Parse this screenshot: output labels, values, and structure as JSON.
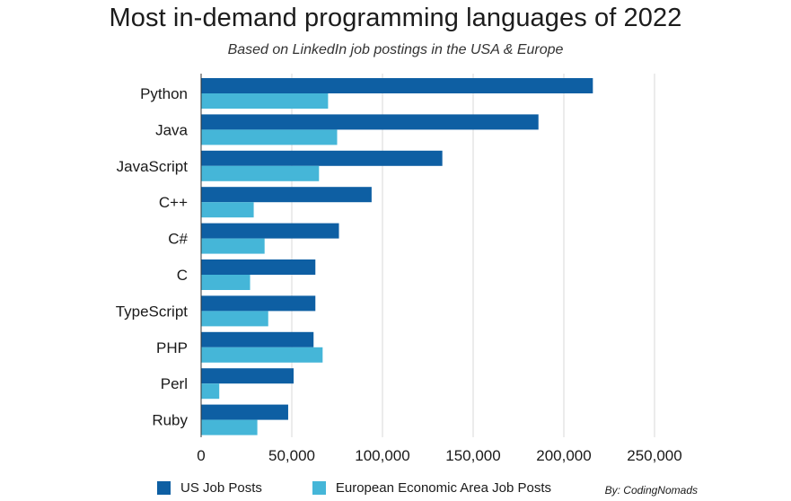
{
  "chart_data": {
    "type": "bar",
    "orientation": "horizontal",
    "title": "Most in-demand programming languages of 2022",
    "subtitle": "Based on LinkedIn job postings in the USA & Europe",
    "categories": [
      "Python",
      "Java",
      "JavaScript",
      "C++",
      "C#",
      "C",
      "TypeScript",
      "PHP",
      "Perl",
      "Ruby"
    ],
    "series": [
      {
        "name": "US Job Posts",
        "color": "#0e5fa3",
        "values": [
          216000,
          186000,
          133000,
          94000,
          76000,
          63000,
          63000,
          62000,
          51000,
          48000
        ]
      },
      {
        "name": "European Economic Area Job Posts",
        "color": "#45b6d8",
        "values": [
          70000,
          75000,
          65000,
          29000,
          35000,
          27000,
          37000,
          67000,
          10000,
          31000
        ]
      }
    ],
    "xlim": [
      0,
      250000
    ],
    "xticks": [
      "0",
      "50,000",
      "100,000",
      "150,000",
      "200,000",
      "250,000"
    ],
    "xtick_values": [
      0,
      50000,
      100000,
      150000,
      200000,
      250000
    ],
    "grid": "vertical",
    "legend_position": "bottom"
  },
  "credit": "By: CodingNomads"
}
